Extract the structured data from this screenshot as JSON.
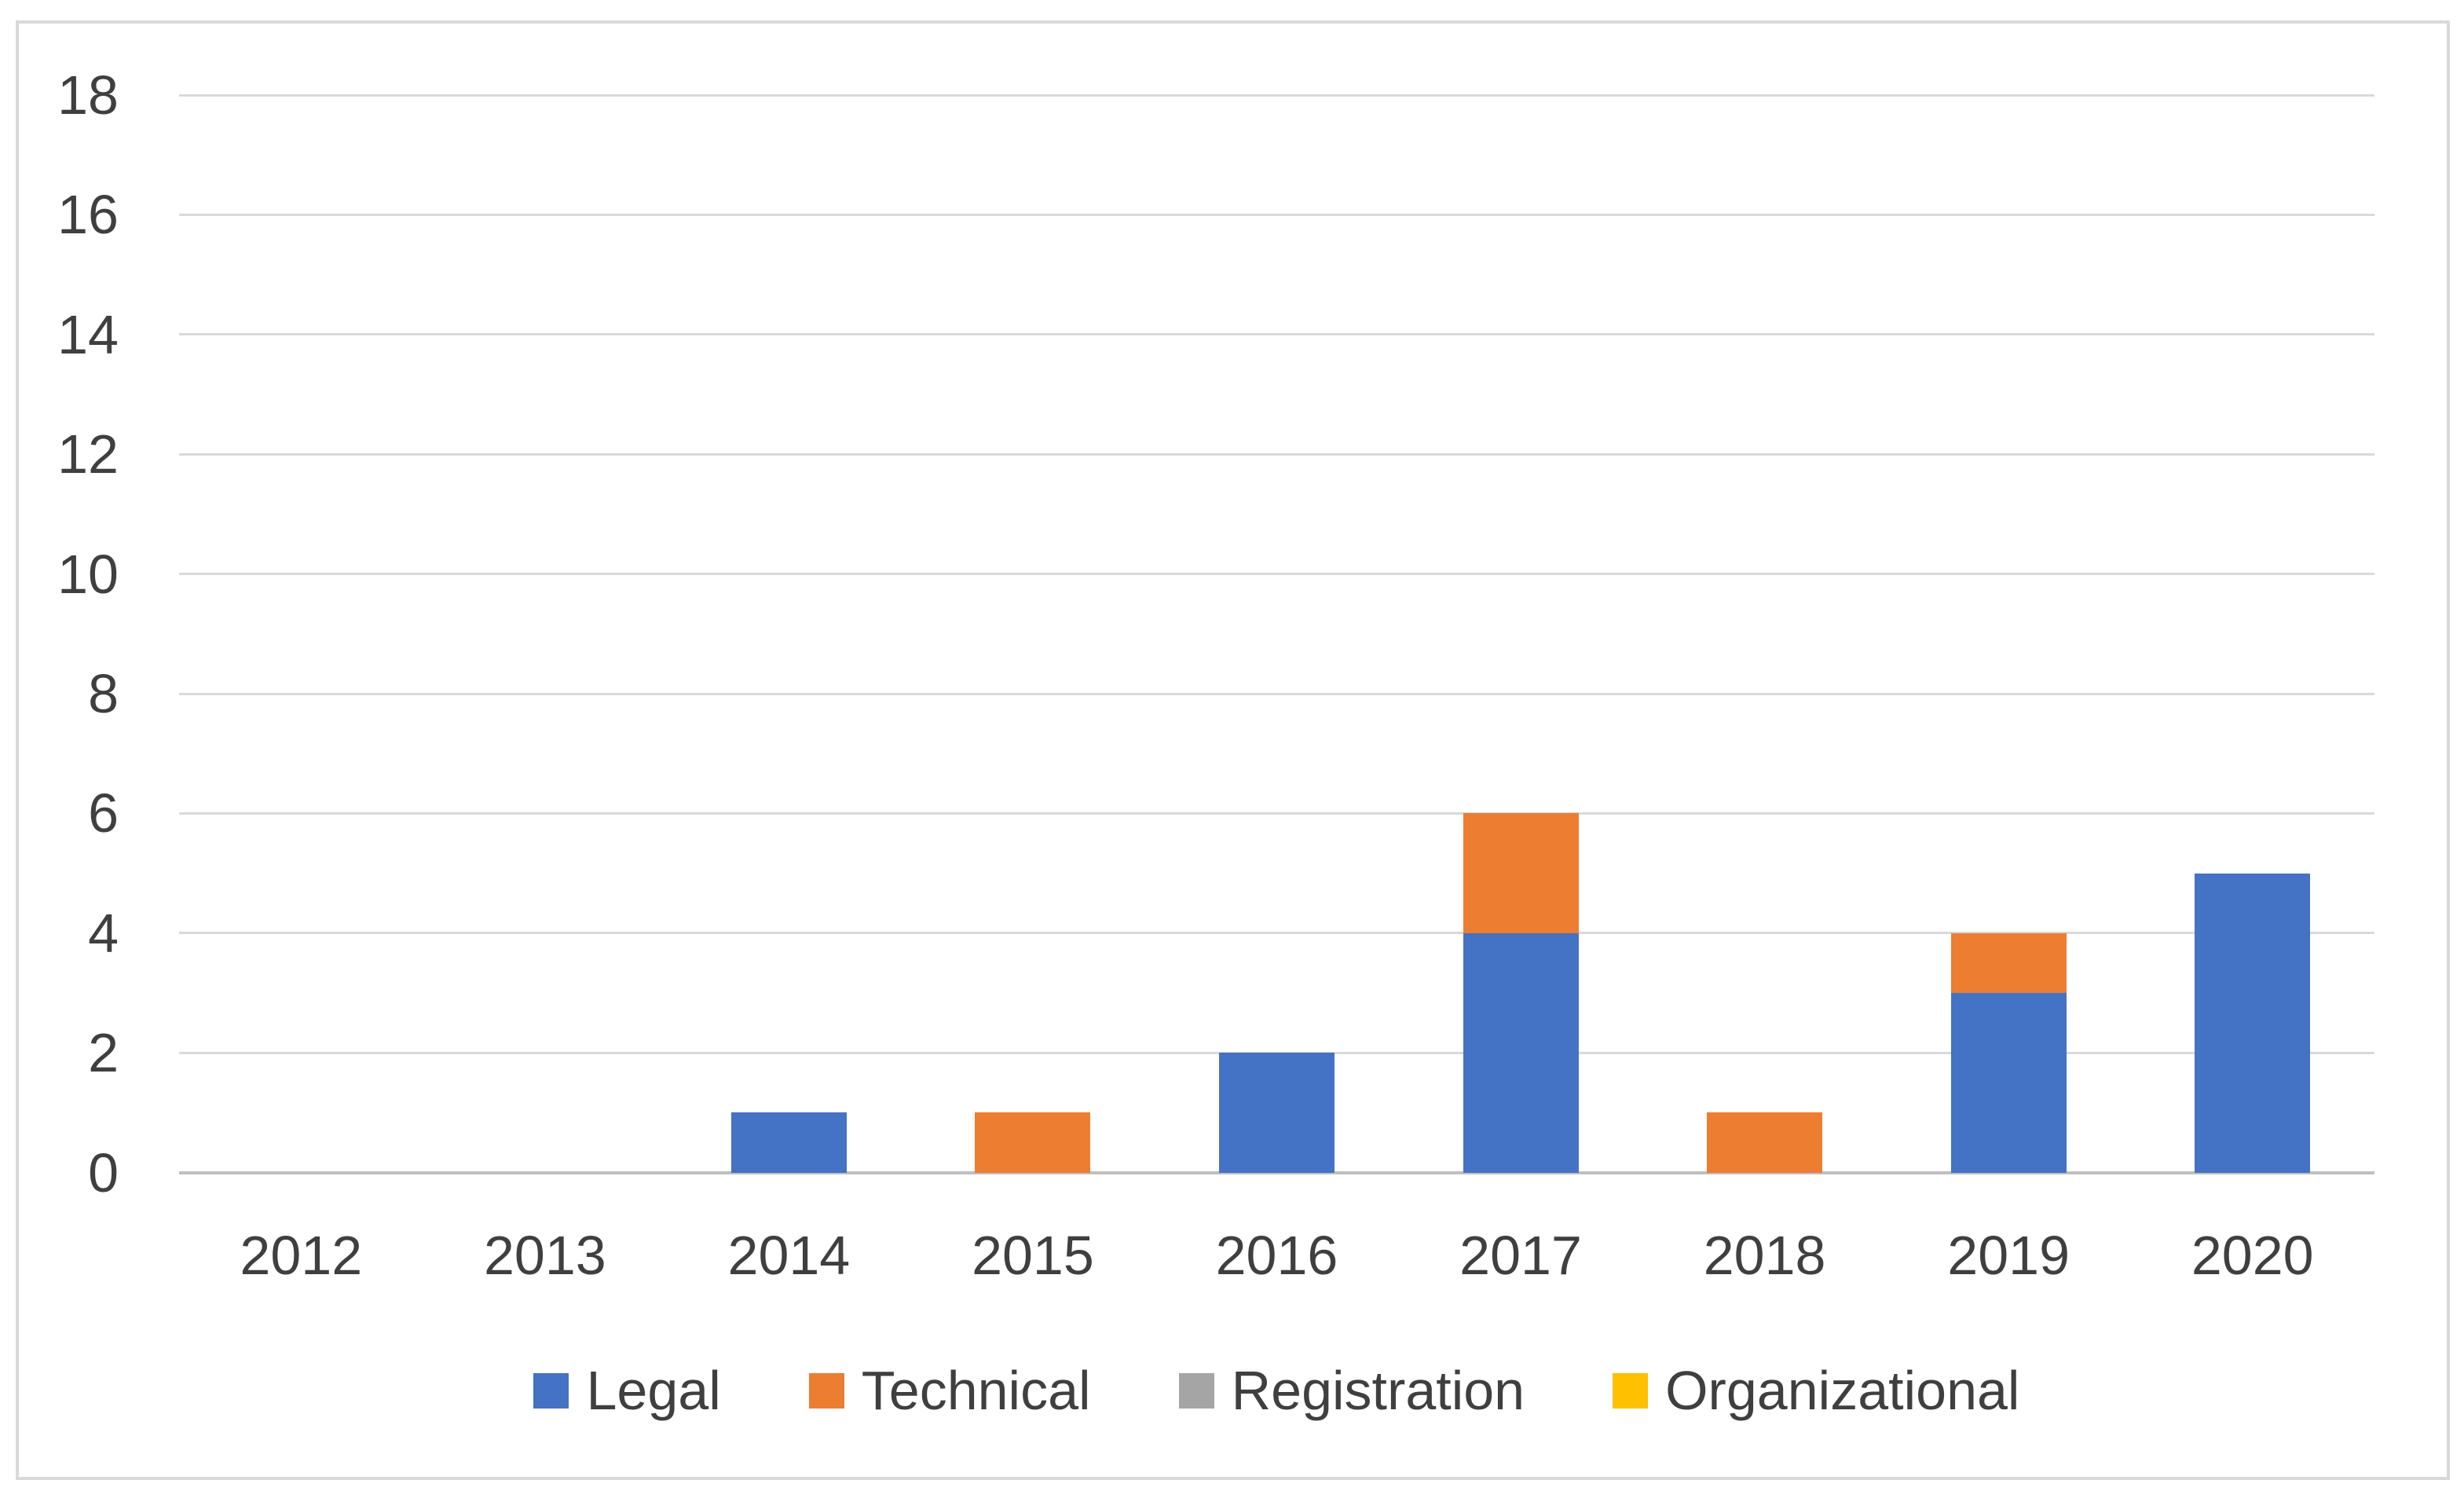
{
  "chart_data": {
    "type": "bar",
    "stacked": true,
    "title": "",
    "xlabel": "",
    "ylabel": "",
    "categories": [
      "2012",
      "2013",
      "2014",
      "2015",
      "2016",
      "2017",
      "2018",
      "2019",
      "2020"
    ],
    "series": [
      {
        "name": "Legal",
        "color": "#4472C4",
        "values": [
          0,
          0,
          1,
          0,
          2,
          4,
          0,
          3,
          5
        ]
      },
      {
        "name": "Technical",
        "color": "#ED7D31",
        "values": [
          0,
          0,
          0,
          1,
          0,
          2,
          1,
          1,
          0
        ]
      },
      {
        "name": "Registration",
        "color": "#A5A5A5",
        "values": [
          0,
          0,
          0,
          0,
          0,
          0,
          0,
          0,
          0
        ]
      },
      {
        "name": "Organizational",
        "color": "#FFC000",
        "values": [
          0,
          0,
          0,
          0,
          0,
          0,
          0,
          0,
          0
        ]
      }
    ],
    "ylim": [
      0,
      18
    ],
    "ytick_step": 2,
    "yticks": [
      "0",
      "2",
      "4",
      "6",
      "8",
      "10",
      "12",
      "14",
      "16",
      "18"
    ],
    "grid": true,
    "legend_position": "bottom"
  },
  "colors": {
    "gridline": "#d9d9d9",
    "axis_line": "#bfbfbf",
    "tick_label": "#3f3f3f",
    "frame_border": "#d9d9d9",
    "background": "#ffffff"
  }
}
